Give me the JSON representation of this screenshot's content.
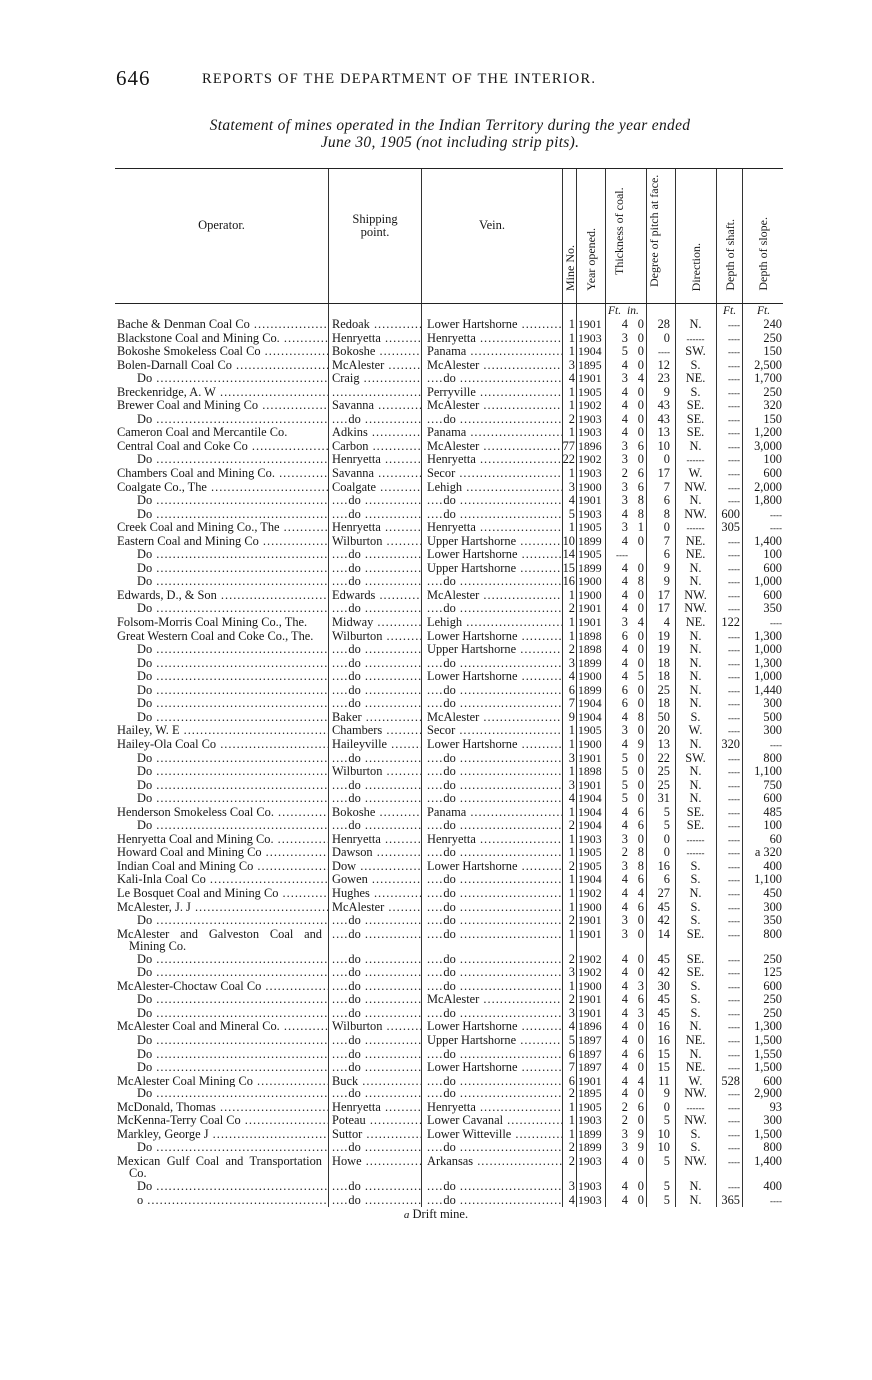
{
  "page": {
    "number": "646",
    "running_title": "REPORTS OF THE DEPARTMENT OF THE INTERIOR.",
    "caption_line1": "Statement of mines operated in the Indian Territory during the year ended",
    "caption_line2": "June 30, 1905 (not including strip pits)."
  },
  "table": {
    "headers": {
      "operator": "Operator.",
      "shipping_point": "Shipping point.",
      "vein": "Vein.",
      "mine_no": "Mine No.",
      "year_opened": "Year opened.",
      "thickness": "Thickness of coal.",
      "pitch": "Degree of pitch at face.",
      "direction": "Direction.",
      "depth_shaft": "Depth of shaft.",
      "depth_slope": "Depth of slope."
    },
    "units": {
      "ft": "Ft.",
      "in": "in.",
      "shaft": "Ft.",
      "slope": "Ft."
    },
    "rows": [
      [
        "Bache & Denman Coal Co",
        "Redoak",
        "Lower Hartshorne",
        "1",
        "1901",
        "4",
        "0",
        "28",
        "N.",
        "",
        "240"
      ],
      [
        "Blackstone Coal and Mining Co.",
        "Henryetta",
        "Henryetta",
        "1",
        "1903",
        "3",
        "0",
        "0",
        "",
        "",
        "250"
      ],
      [
        "Bokoshe Smokeless Coal Co",
        "Bokoshe",
        "Panama",
        "1",
        "1904",
        "5",
        "0",
        "",
        "SW.",
        "",
        "150"
      ],
      [
        "Bolen-Darnall Coal Co",
        "McAlester",
        "McAlester",
        "3",
        "1895",
        "4",
        "0",
        "12",
        "S.",
        "",
        "2,500"
      ],
      [
        "Do",
        "Craig",
        "do",
        "4",
        "1901",
        "3",
        "4",
        "23",
        "NE.",
        "",
        "1,700"
      ],
      [
        "Breckenridge, A. W",
        "",
        "Perryville",
        "1",
        "1905",
        "4",
        "0",
        "9",
        "S.",
        "",
        "250"
      ],
      [
        "Brewer Coal and Mining Co",
        "Savanna",
        "McAlester",
        "1",
        "1902",
        "4",
        "0",
        "43",
        "SE.",
        "",
        "320"
      ],
      [
        "Do",
        "do",
        "do",
        "2",
        "1903",
        "4",
        "0",
        "43",
        "SE.",
        "",
        "150"
      ],
      [
        "Cameron Coal and Mercantile Co.",
        "Adkins",
        "Panama",
        "1",
        "1903",
        "4",
        "0",
        "13",
        "SE.",
        "",
        "1,200"
      ],
      [
        "Central Coal and Coke Co",
        "Carbon",
        "McAlester",
        "77",
        "1896",
        "3",
        "6",
        "10",
        "N.",
        "",
        "3,000"
      ],
      [
        "Do",
        "Henryetta",
        "Henryetta",
        "22",
        "1902",
        "3",
        "0",
        "0",
        "",
        "",
        "100"
      ],
      [
        "Chambers Coal and Mining Co.",
        "Savanna",
        "Secor",
        "1",
        "1903",
        "2",
        "6",
        "17",
        "W.",
        "",
        "600"
      ],
      [
        "Coalgate Co., The",
        "Coalgate",
        "Lehigh",
        "3",
        "1900",
        "3",
        "6",
        "7",
        "NW.",
        "",
        "2,000"
      ],
      [
        "Do",
        "do",
        "do",
        "4",
        "1901",
        "3",
        "8",
        "6",
        "N.",
        "",
        "1,800"
      ],
      [
        "Do",
        "do",
        "do",
        "5",
        "1903",
        "4",
        "8",
        "8",
        "NW.",
        "600",
        ""
      ],
      [
        "Creek Coal and Mining Co., The",
        "Henryetta",
        "Henryetta",
        "1",
        "1905",
        "3",
        "1",
        "0",
        "",
        "305",
        ""
      ],
      [
        "Eastern Coal and Mining Co",
        "Wilburton",
        "Upper Hartshorne",
        "10",
        "1899",
        "4",
        "0",
        "7",
        "NE.",
        "",
        "1,400"
      ],
      [
        "Do",
        "do",
        "Lower Hartshorne",
        "14",
        "1905",
        "",
        "",
        "6",
        "NE.",
        "",
        "100"
      ],
      [
        "Do",
        "do",
        "Upper Hartshorne",
        "15",
        "1899",
        "4",
        "0",
        "9",
        "N.",
        "",
        "600"
      ],
      [
        "Do",
        "do",
        "do",
        "16",
        "1900",
        "4",
        "8",
        "9",
        "N.",
        "",
        "1,000"
      ],
      [
        "Edwards, D., & Son",
        "Edwards",
        "McAlester",
        "1",
        "1900",
        "4",
        "0",
        "17",
        "NW.",
        "",
        "600"
      ],
      [
        "Do",
        "do",
        "do",
        "2",
        "1901",
        "4",
        "0",
        "17",
        "NW.",
        "",
        "350"
      ],
      [
        "Folsom-Morris Coal Mining Co., The.",
        "Midway",
        "Lehigh",
        "1",
        "1901",
        "3",
        "4",
        "4",
        "NE.",
        "122",
        ""
      ],
      [
        "Great Western Coal and Coke Co., The.",
        "Wilburton",
        "Lower Hartshorne",
        "1",
        "1898",
        "6",
        "0",
        "19",
        "N.",
        "",
        "1,300"
      ],
      [
        "Do",
        "do",
        "Upper Hartshorne",
        "2",
        "1898",
        "4",
        "0",
        "19",
        "N.",
        "",
        "1,000"
      ],
      [
        "Do",
        "do",
        "do",
        "3",
        "1899",
        "4",
        "0",
        "18",
        "N.",
        "",
        "1,300"
      ],
      [
        "Do",
        "do",
        "Lower Hartshorne",
        "4",
        "1900",
        "4",
        "5",
        "18",
        "N.",
        "",
        "1,000"
      ],
      [
        "Do",
        "do",
        "do",
        "6",
        "1899",
        "6",
        "0",
        "25",
        "N.",
        "",
        "1,440"
      ],
      [
        "Do",
        "do",
        "do",
        "7",
        "1904",
        "6",
        "0",
        "18",
        "N.",
        "",
        "300"
      ],
      [
        "Do",
        "Baker",
        "McAlester",
        "9",
        "1904",
        "4",
        "8",
        "50",
        "S.",
        "",
        "500"
      ],
      [
        "Hailey, W. E",
        "Chambers",
        "Secor",
        "1",
        "1905",
        "3",
        "0",
        "20",
        "W.",
        "",
        "300"
      ],
      [
        "Hailey-Ola Coal Co",
        "Haileyville",
        "Lower Hartshorne",
        "1",
        "1900",
        "4",
        "9",
        "13",
        "N.",
        "320",
        ""
      ],
      [
        "Do",
        "do",
        "do",
        "3",
        "1901",
        "5",
        "0",
        "22",
        "SW.",
        "",
        "800"
      ],
      [
        "Do",
        "Wilburton",
        "do",
        "1",
        "1898",
        "5",
        "0",
        "25",
        "N.",
        "",
        "1,100"
      ],
      [
        "Do",
        "do",
        "do",
        "3",
        "1901",
        "5",
        "0",
        "25",
        "N.",
        "",
        "750"
      ],
      [
        "Do",
        "do",
        "do",
        "4",
        "1904",
        "5",
        "0",
        "31",
        "N.",
        "",
        "600"
      ],
      [
        "Henderson Smokeless Coal Co.",
        "Bokoshe",
        "Panama",
        "1",
        "1904",
        "4",
        "6",
        "5",
        "SE.",
        "",
        "485"
      ],
      [
        "Do",
        "do",
        "do",
        "2",
        "1904",
        "4",
        "6",
        "5",
        "SE.",
        "",
        "100"
      ],
      [
        "Henryetta Coal and Mining Co.",
        "Henryetta",
        "Henryetta",
        "1",
        "1903",
        "3",
        "0",
        "0",
        "",
        "",
        "60"
      ],
      [
        "Howard Coal and Mining Co",
        "Dawson",
        "do",
        "1",
        "1905",
        "2",
        "8",
        "0",
        "",
        "",
        "a 320"
      ],
      [
        "Indian Coal and Mining Co",
        "Dow",
        "Lower Hartshorne",
        "2",
        "1905",
        "3",
        "8",
        "16",
        "S.",
        "",
        "400"
      ],
      [
        "Kali-Inla Coal Co",
        "Gowen",
        "do",
        "1",
        "1904",
        "4",
        "6",
        "6",
        "S.",
        "",
        "1,100"
      ],
      [
        "Le Bosquet Coal and Mining Co",
        "Hughes",
        "do",
        "1",
        "1902",
        "4",
        "4",
        "27",
        "N.",
        "",
        "450"
      ],
      [
        "McAlester, J. J",
        "McAlester",
        "do",
        "1",
        "1900",
        "4",
        "6",
        "45",
        "S.",
        "",
        "300"
      ],
      [
        "Do",
        "do",
        "do",
        "2",
        "1901",
        "3",
        "0",
        "42",
        "S.",
        "",
        "350"
      ],
      [
        "McAlester and Galveston Coal and Mining Co.",
        "do",
        "do",
        "1",
        "1901",
        "3",
        "0",
        "14",
        "SE.",
        "",
        "800"
      ],
      [
        "Do",
        "do",
        "do",
        "2",
        "1902",
        "4",
        "0",
        "45",
        "SE.",
        "",
        "250"
      ],
      [
        "Do",
        "do",
        "do",
        "3",
        "1902",
        "4",
        "0",
        "42",
        "SE.",
        "",
        "125"
      ],
      [
        "McAlester-Choctaw Coal Co",
        "do",
        "do",
        "1",
        "1900",
        "4",
        "3",
        "30",
        "S.",
        "",
        "600"
      ],
      [
        "Do",
        "do",
        "McAlester",
        "2",
        "1901",
        "4",
        "6",
        "45",
        "S.",
        "",
        "250"
      ],
      [
        "Do",
        "do",
        "do",
        "3",
        "1901",
        "4",
        "3",
        "45",
        "S.",
        "",
        "250"
      ],
      [
        "McAlester Coal and Mineral Co.",
        "Wilburton",
        "Lower Hartshorne",
        "4",
        "1896",
        "4",
        "0",
        "16",
        "N.",
        "",
        "1,300"
      ],
      [
        "Do",
        "do",
        "Upper Hartshorne",
        "5",
        "1897",
        "4",
        "0",
        "16",
        "NE.",
        "",
        "1,500"
      ],
      [
        "Do",
        "do",
        "do",
        "6",
        "1897",
        "4",
        "6",
        "15",
        "N.",
        "",
        "1,550"
      ],
      [
        "Do",
        "do",
        "Lower Hartshorne",
        "7",
        "1897",
        "4",
        "0",
        "15",
        "NE.",
        "",
        "1,500"
      ],
      [
        "McAlester Coal Mining Co",
        "Buck",
        "do",
        "6",
        "1901",
        "4",
        "4",
        "11",
        "W.",
        "528",
        "600"
      ],
      [
        "Do",
        "do",
        "do",
        "2",
        "1895",
        "4",
        "0",
        "9",
        "NW.",
        "",
        "2,900"
      ],
      [
        "McDonald, Thomas",
        "Henryetta",
        "Henryetta",
        "1",
        "1905",
        "2",
        "6",
        "0",
        "",
        "",
        "93"
      ],
      [
        "McKenna-Terry Coal Co",
        "Poteau",
        "Lower Cavanal",
        "1",
        "1903",
        "2",
        "0",
        "5",
        "NW.",
        "",
        "300"
      ],
      [
        "Markley, George J",
        "Suttor",
        "Lower Witteville",
        "1",
        "1899",
        "3",
        "9",
        "10",
        "S.",
        "",
        "1,500"
      ],
      [
        "Do",
        "do",
        "do",
        "2",
        "1899",
        "3",
        "9",
        "10",
        "S.",
        "",
        "800"
      ],
      [
        "Mexican Gulf Coal and Transportation Co.",
        "Howe",
        "Arkansas",
        "2",
        "1903",
        "4",
        "0",
        "5",
        "NW.",
        "",
        "1,400"
      ],
      [
        "Do",
        "do",
        "do",
        "3",
        "1903",
        "4",
        "0",
        "5",
        "N.",
        "",
        "400"
      ],
      [
        "o",
        "do",
        "do",
        "4",
        "1903",
        "4",
        "0",
        "5",
        "N.",
        "365",
        ""
      ]
    ]
  },
  "footnote": {
    "marker": "a",
    "text": "Drift mine."
  }
}
